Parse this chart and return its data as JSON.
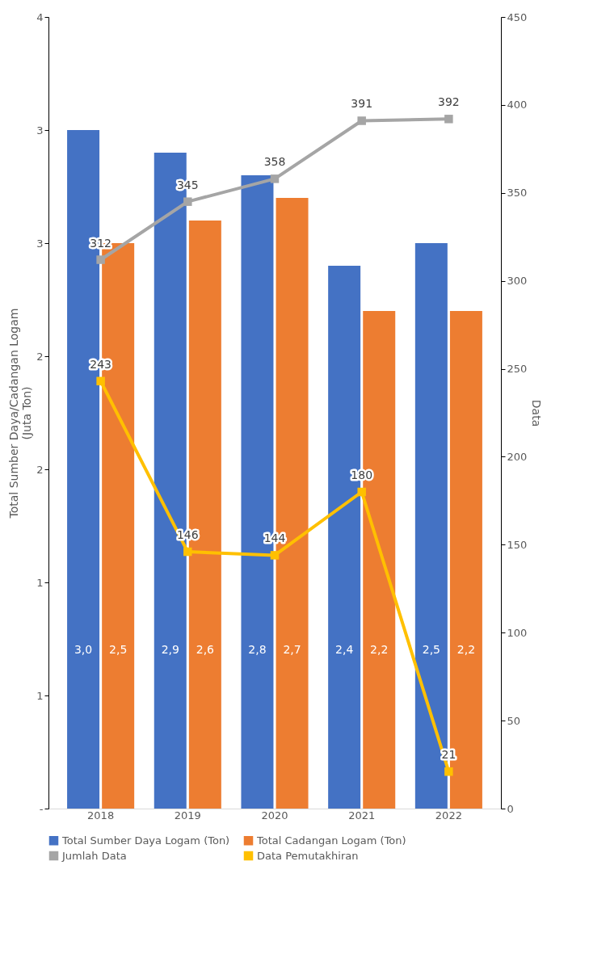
{
  "chart_data": {
    "type": "bar",
    "categories": [
      "2018",
      "2019",
      "2020",
      "2021",
      "2022"
    ],
    "ylabel": "Total Sumber Daya/Cadangan Logam\n(Juta Ton)",
    "y2label": "Data",
    "series": [
      {
        "name": "Total Sumber Daya Logam  (Ton)",
        "type": "bar",
        "color": "#4472c4",
        "values": [
          3.0,
          2.9,
          2.8,
          2.4,
          2.5
        ],
        "value_labels": [
          "3,0",
          "2,9",
          "2,8",
          "2,4",
          "2,5"
        ]
      },
      {
        "name": "Total Cadangan Logam (Ton)",
        "type": "bar",
        "color": "#ed7d31",
        "values": [
          2.5,
          2.6,
          2.7,
          2.2,
          2.2
        ],
        "value_labels": [
          "2,5",
          "2,6",
          "2,7",
          "2,2",
          "2,2"
        ]
      },
      {
        "name": "Jumlah  Data",
        "type": "line",
        "axis": "y2",
        "color": "#a5a5a5",
        "values": [
          312,
          345,
          358,
          391,
          392
        ],
        "value_labels": [
          "312",
          "345",
          "358",
          "391",
          "392"
        ]
      },
      {
        "name": "Data Pemutakhiran",
        "type": "line",
        "axis": "y2",
        "color": "#ffc000",
        "values": [
          243,
          146,
          144,
          180,
          21
        ],
        "value_labels": [
          "243",
          "146",
          "144",
          "180",
          "21"
        ]
      }
    ],
    "ylim": [
      0,
      3.5
    ],
    "yticks": [
      {
        "value": 0,
        "label": "-"
      },
      {
        "value": 0.5,
        "label": "1"
      },
      {
        "value": 1,
        "label": "1"
      },
      {
        "value": 1.5,
        "label": "2"
      },
      {
        "value": 2,
        "label": "2"
      },
      {
        "value": 2.5,
        "label": "3"
      },
      {
        "value": 3,
        "label": "3"
      },
      {
        "value": 3.5,
        "label": "4"
      }
    ],
    "y2lim": [
      0,
      450
    ],
    "y2ticks": [
      0,
      50,
      100,
      150,
      200,
      250,
      300,
      350,
      400,
      450
    ],
    "marker": "square",
    "grid": false,
    "legend": "bottom"
  }
}
